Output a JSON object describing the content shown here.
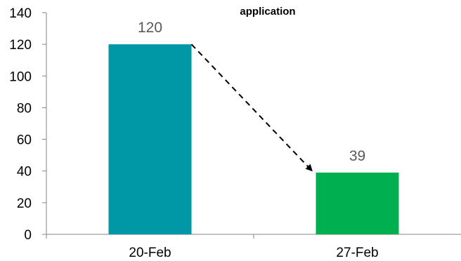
{
  "chart_data": {
    "type": "bar",
    "title": "application",
    "categories": [
      "20-Feb",
      "27-Feb"
    ],
    "values": [
      120,
      39
    ],
    "data_labels": [
      "120",
      "39"
    ],
    "bar_colors": [
      "#0097A7",
      "#00B050"
    ],
    "ylim": [
      0,
      140
    ],
    "y_ticks": [
      0,
      20,
      40,
      60,
      80,
      100,
      120,
      140
    ],
    "y_tick_labels": [
      "0",
      "20",
      "40",
      "60",
      "80",
      "100",
      "120",
      "140"
    ],
    "grid": false,
    "legend": "none",
    "annotation": {
      "type": "dashed-arrow",
      "from": {
        "category": "20-Feb",
        "value": 120
      },
      "to": {
        "category": "27-Feb",
        "value": 39
      }
    }
  }
}
